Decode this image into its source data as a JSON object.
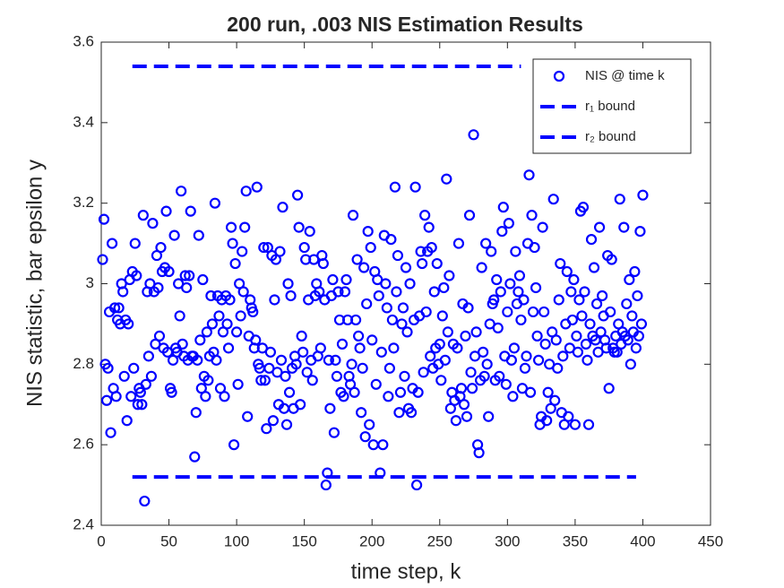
{
  "chart_data": {
    "type": "scatter",
    "title": "200 run, .003 NIS Estimation Results",
    "xlabel": "time step, k",
    "ylabel": "NIS statistic, bar epsilon y",
    "xlim": [
      0,
      450
    ],
    "xticks": [
      0,
      50,
      100,
      150,
      200,
      250,
      300,
      350,
      400,
      450
    ],
    "ylim": [
      2.4,
      3.6
    ],
    "yticks": [
      2.4,
      2.6,
      2.8,
      3,
      3.2,
      3.4,
      3.6
    ],
    "legend": "northeast",
    "series": [
      {
        "name": "NIS @ time k",
        "color": "#0000ff",
        "style": "marker",
        "x": [
          1,
          2,
          3,
          4,
          5,
          6,
          7,
          8,
          9,
          10,
          11,
          12,
          13,
          14,
          15,
          16,
          17,
          18,
          19,
          20,
          21,
          22,
          23,
          24,
          25,
          26,
          27,
          28,
          29,
          30,
          31,
          32,
          33,
          34,
          35,
          36,
          37,
          38,
          39,
          40,
          41,
          42,
          43,
          44,
          45,
          46,
          47,
          48,
          49,
          50,
          51,
          52,
          53,
          54,
          55,
          56,
          57,
          58,
          59,
          60,
          61,
          62,
          63,
          64,
          65,
          66,
          67,
          68,
          69,
          70,
          71,
          72,
          73,
          74,
          75,
          76,
          77,
          78,
          79,
          80,
          81,
          82,
          83,
          84,
          85,
          86,
          87,
          88,
          89,
          90,
          91,
          92,
          93,
          94,
          95,
          96,
          97,
          98,
          99,
          100,
          101,
          102,
          103,
          104,
          105,
          106,
          107,
          108,
          109,
          110,
          111,
          112,
          113,
          114,
          115,
          116,
          117,
          118,
          119,
          120,
          121,
          122,
          123,
          124,
          125,
          126,
          127,
          128,
          129,
          130,
          131,
          132,
          133,
          134,
          135,
          136,
          137,
          138,
          139,
          140,
          141,
          142,
          143,
          144,
          145,
          146,
          147,
          148,
          149,
          150,
          151,
          152,
          153,
          154,
          155,
          156,
          157,
          158,
          159,
          160,
          161,
          162,
          163,
          164,
          165,
          166,
          167,
          168,
          169,
          170,
          171,
          172,
          173,
          174,
          175,
          176,
          177,
          178,
          179,
          180,
          181,
          182,
          183,
          184,
          185,
          186,
          187,
          188,
          189,
          190,
          191,
          192,
          193,
          194,
          195,
          196,
          197,
          198,
          199,
          200,
          201,
          202,
          203,
          204,
          205,
          206,
          207,
          208,
          209,
          210,
          211,
          212,
          213,
          214,
          215,
          216,
          217,
          218,
          219,
          220,
          221,
          222,
          223,
          224,
          225,
          226,
          227,
          228,
          229,
          230,
          231,
          232,
          233,
          234,
          235,
          236,
          237,
          238,
          239,
          240,
          241,
          242,
          243,
          244,
          245,
          246,
          247,
          248,
          249,
          250,
          251,
          252,
          253,
          254,
          255,
          256,
          257,
          258,
          259,
          260,
          261,
          262,
          263,
          264,
          265,
          266,
          267,
          268,
          269,
          270,
          271,
          272,
          273,
          274,
          275,
          276,
          277,
          278,
          279,
          280,
          281,
          282,
          283,
          284,
          285,
          286,
          287,
          288,
          289,
          290,
          291,
          292,
          293,
          294,
          295,
          296,
          297,
          298,
          299,
          300,
          301,
          302,
          303,
          304,
          305,
          306,
          307,
          308,
          309,
          310,
          311,
          312,
          313,
          314,
          315,
          316,
          317,
          318,
          319,
          320,
          321,
          322,
          323,
          324,
          325,
          326,
          327,
          328,
          329,
          330,
          331,
          332,
          333,
          334,
          335,
          336,
          337,
          338,
          339,
          340,
          341,
          342,
          343,
          344,
          345,
          346,
          347,
          348,
          349,
          350,
          351,
          352,
          353,
          354,
          355,
          356,
          357,
          358,
          359,
          360,
          361,
          362,
          363,
          364,
          365,
          366,
          367,
          368,
          369,
          370,
          371,
          372,
          373,
          374,
          375,
          376,
          377,
          378,
          379,
          380,
          381,
          382,
          383,
          384,
          385,
          386,
          387,
          388,
          389,
          390,
          391,
          392,
          393,
          394,
          395,
          396,
          397,
          398,
          399,
          400
        ],
        "values": [
          3.06,
          3.16,
          2.8,
          2.71,
          2.79,
          2.93,
          2.63,
          3.1,
          2.74,
          2.94,
          2.72,
          2.91,
          2.94,
          2.9,
          3.0,
          2.98,
          2.77,
          2.91,
          2.66,
          2.9,
          3.01,
          2.72,
          3.03,
          2.79,
          3.1,
          3.02,
          2.7,
          2.74,
          2.73,
          2.7,
          3.17,
          2.46,
          2.75,
          2.98,
          2.82,
          3.0,
          2.77,
          3.15,
          2.98,
          2.85,
          3.07,
          2.99,
          2.87,
          3.09,
          3.03,
          2.84,
          3.04,
          3.18,
          2.83,
          3.03,
          2.74,
          2.73,
          2.81,
          3.12,
          2.84,
          2.83,
          3.0,
          2.92,
          3.23,
          2.85,
          2.82,
          3.02,
          2.99,
          2.81,
          3.02,
          3.18,
          2.82,
          2.82,
          2.57,
          2.68,
          2.81,
          3.12,
          2.86,
          2.74,
          3.01,
          2.77,
          2.72,
          2.88,
          2.76,
          2.82,
          2.97,
          2.9,
          2.83,
          3.2,
          2.81,
          2.97,
          2.92,
          2.74,
          2.96,
          2.88,
          2.72,
          2.97,
          2.9,
          2.84,
          2.96,
          3.14,
          3.1,
          2.6,
          3.05,
          2.88,
          2.75,
          3.0,
          2.92,
          3.08,
          2.98,
          3.14,
          3.23,
          2.67,
          2.87,
          2.96,
          2.94,
          2.93,
          2.84,
          2.86,
          3.24,
          2.8,
          2.79,
          2.76,
          2.84,
          3.09,
          2.76,
          2.64,
          3.09,
          2.79,
          2.83,
          3.07,
          2.66,
          2.96,
          3.06,
          2.78,
          2.7,
          3.08,
          2.81,
          3.19,
          2.69,
          2.77,
          2.65,
          3.0,
          2.73,
          2.97,
          2.79,
          2.69,
          2.82,
          2.8,
          3.22,
          3.14,
          2.7,
          2.87,
          2.83,
          3.09,
          3.06,
          2.78,
          2.96,
          3.13,
          2.81,
          2.76,
          3.06,
          2.97,
          3.0,
          2.82,
          2.98,
          2.84,
          3.07,
          3.05,
          2.96,
          2.5,
          2.53,
          2.81,
          2.69,
          2.97,
          3.01,
          2.63,
          2.81,
          2.77,
          2.98,
          2.91,
          2.73,
          2.85,
          2.72,
          2.98,
          3.01,
          2.91,
          2.77,
          2.75,
          2.8,
          3.17,
          2.73,
          2.91,
          3.06,
          2.87,
          2.84,
          2.68,
          2.79,
          3.04,
          2.62,
          2.95,
          3.13,
          2.65,
          3.09,
          2.86,
          2.6,
          3.03,
          2.75,
          3.01,
          2.97,
          2.53,
          2.83,
          2.6,
          3.12,
          3.0,
          2.94,
          2.72,
          2.79,
          3.11,
          2.91,
          2.84,
          3.24,
          2.98,
          3.07,
          2.68,
          2.73,
          2.9,
          2.94,
          2.77,
          3.04,
          2.88,
          2.69,
          3.0,
          2.68,
          2.74,
          2.91,
          3.24,
          2.5,
          2.73,
          2.92,
          3.08,
          3.05,
          2.78,
          3.17,
          2.93,
          3.08,
          3.14,
          2.82,
          3.09,
          2.79,
          2.98,
          2.84,
          3.05,
          2.8,
          2.85,
          2.76,
          2.92,
          2.99,
          2.81,
          3.26,
          2.88,
          3.02,
          2.69,
          2.73,
          2.85,
          2.71,
          2.66,
          2.84,
          3.1,
          2.72,
          2.74,
          2.95,
          2.7,
          2.87,
          2.67,
          2.94,
          3.17,
          2.78,
          2.74,
          3.37,
          2.82,
          2.88,
          2.6,
          2.58,
          2.76,
          3.04,
          2.83,
          2.77,
          3.1,
          2.8,
          2.67,
          2.9,
          3.08,
          2.95,
          2.96,
          2.76,
          3.01,
          2.89,
          2.77,
          2.98,
          3.13,
          3.19,
          2.82,
          2.75,
          2.93,
          3.15,
          3.0,
          2.81,
          2.72,
          2.84,
          3.08,
          2.95,
          2.98,
          3.02,
          2.91,
          2.74,
          2.96,
          2.79,
          2.82,
          3.1,
          3.27,
          2.73,
          3.17,
          2.93,
          3.09,
          2.99,
          2.87,
          2.81,
          2.65,
          2.67,
          3.14,
          2.93,
          2.85,
          2.66,
          2.73,
          2.8,
          2.69,
          2.88,
          3.21,
          2.71,
          2.86,
          2.79,
          2.96,
          3.05,
          2.68,
          2.82,
          2.65,
          2.9,
          3.03,
          2.67,
          2.84,
          2.98,
          2.91,
          3.01,
          2.65,
          2.87,
          2.83,
          2.96,
          3.18,
          2.92,
          3.19,
          2.98,
          2.85,
          2.81,
          2.65,
          2.9,
          3.11,
          2.87,
          3.04,
          2.86,
          2.95,
          2.83,
          3.14,
          2.88,
          2.97,
          2.92,
          2.86,
          2.84,
          3.07,
          2.74,
          2.93,
          3.06,
          2.84,
          2.83,
          2.87,
          2.83,
          2.9,
          3.21,
          2.85,
          2.88,
          3.14,
          2.87,
          2.95,
          2.86,
          3.01,
          2.8,
          2.92,
          2.88,
          3.03,
          2.84,
          2.97,
          2.87,
          3.13,
          2.9,
          3.22
        ]
      },
      {
        "name": "r₁ bound",
        "color": "#0000ff",
        "style": "dashed",
        "x": [
          23,
          310
        ],
        "values": [
          3.54,
          3.54
        ]
      },
      {
        "name": "r₂ bound",
        "color": "#0000ff",
        "style": "dashed",
        "x": [
          23,
          395
        ],
        "values": [
          2.52,
          2.52
        ]
      }
    ]
  }
}
